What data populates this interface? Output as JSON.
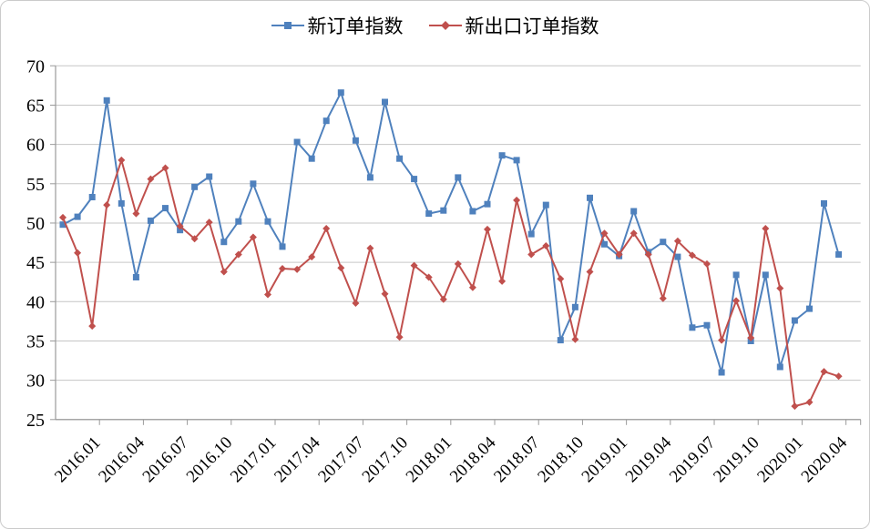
{
  "chart_data": {
    "type": "line",
    "title": "",
    "x_months": [
      "2016.01",
      "2016.02",
      "2016.03",
      "2016.04",
      "2016.05",
      "2016.06",
      "2016.07",
      "2016.08",
      "2016.09",
      "2016.10",
      "2016.11",
      "2016.12",
      "2017.01",
      "2017.02",
      "2017.03",
      "2017.04",
      "2017.05",
      "2017.06",
      "2017.07",
      "2017.08",
      "2017.09",
      "2017.10",
      "2017.11",
      "2017.12",
      "2018.01",
      "2018.02",
      "2018.03",
      "2018.04",
      "2018.05",
      "2018.06",
      "2018.07",
      "2018.08",
      "2018.09",
      "2018.10",
      "2018.11",
      "2018.12",
      "2019.01",
      "2019.02",
      "2019.03",
      "2019.04",
      "2019.05",
      "2019.06",
      "2019.07",
      "2019.08",
      "2019.09",
      "2019.10",
      "2019.11",
      "2019.12",
      "2020.01",
      "2020.02",
      "2020.03",
      "2020.04",
      "2020.05",
      "2020.06"
    ],
    "x_tick_labels": [
      "2016.01",
      "2016.04",
      "2016.07",
      "2016.10",
      "2017.01",
      "2017.04",
      "2017.07",
      "2017.10",
      "2018.01",
      "2018.04",
      "2018.07",
      "2018.10",
      "2019.01",
      "2019.04",
      "2019.07",
      "2019.10",
      "2020.01",
      "2020.04"
    ],
    "y_ticks": [
      70,
      65,
      60,
      55,
      50,
      45,
      40,
      35,
      30,
      25
    ],
    "ylim": [
      25,
      70
    ],
    "grid": "horizontal",
    "legend_position": "top-center",
    "series": [
      {
        "name": "新订单指数",
        "color": "#4F81BD",
        "marker": "square",
        "values": [
          49.8,
          50.8,
          53.3,
          65.6,
          52.5,
          43.1,
          50.3,
          51.9,
          49.1,
          54.6,
          55.9,
          47.6,
          50.2,
          55.0,
          50.2,
          47.0,
          60.3,
          58.2,
          63.0,
          66.6,
          60.5,
          55.8,
          65.4,
          58.2,
          55.6,
          51.2,
          51.6,
          55.8,
          51.5,
          52.4,
          58.6,
          58.0,
          48.6,
          52.3,
          35.1,
          39.3,
          53.2,
          47.3,
          45.8,
          51.5,
          46.3,
          47.6,
          45.7,
          36.7,
          37.0,
          31.0,
          43.4,
          35.0,
          43.4,
          31.7,
          37.6,
          39.1,
          52.5,
          46.0
        ]
      },
      {
        "name": "新出口订单指数",
        "color": "#C0504D",
        "marker": "diamond",
        "values": [
          50.7,
          46.2,
          36.9,
          52.3,
          58.0,
          51.2,
          55.6,
          57.0,
          49.6,
          48.0,
          50.1,
          43.8,
          46.0,
          48.2,
          40.9,
          44.2,
          44.1,
          45.7,
          49.3,
          44.3,
          39.8,
          46.8,
          41.0,
          35.5,
          44.6,
          43.1,
          40.3,
          44.8,
          41.8,
          49.2,
          42.6,
          52.9,
          46.0,
          47.1,
          42.9,
          35.2,
          43.8,
          48.7,
          46.0,
          48.7,
          46.0,
          40.4,
          47.7,
          45.9,
          44.8,
          35.1,
          40.1,
          35.4,
          49.3,
          41.7,
          26.7,
          27.2,
          31.1,
          30.5
        ]
      }
    ]
  },
  "colors": {
    "blue": "#4F81BD",
    "red": "#C0504D",
    "grid": "#C6C6C6",
    "axis": "#9a9a9a",
    "text": "#000000"
  }
}
